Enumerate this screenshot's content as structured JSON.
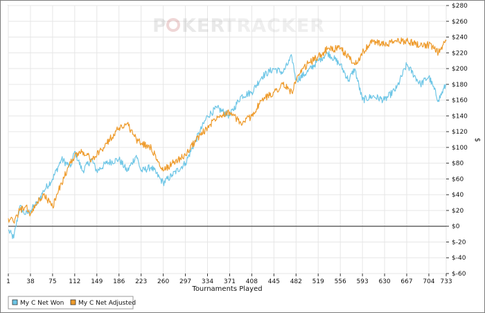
{
  "watermark": {
    "logo_left": "P",
    "logo_right": "KER",
    "logo_suffix": "TRACKER"
  },
  "chart_data": {
    "type": "line",
    "xlabel": "Tournaments Played",
    "ylabel": "$",
    "xlim": [
      1,
      733
    ],
    "ylim": [
      -60,
      280
    ],
    "x_ticks": [
      1,
      38,
      75,
      112,
      149,
      186,
      223,
      260,
      297,
      334,
      371,
      408,
      445,
      482,
      519,
      556,
      593,
      630,
      667,
      704,
      733
    ],
    "y_ticks": [
      "$280",
      "$260",
      "$240",
      "$220",
      "$200",
      "$180",
      "$160",
      "$140",
      "$120",
      "$100",
      "$80",
      "$60",
      "$40",
      "$20",
      "$0",
      "$-20",
      "$-40",
      "$-60"
    ],
    "y_tick_values": [
      280,
      260,
      240,
      220,
      200,
      180,
      160,
      140,
      120,
      100,
      80,
      60,
      40,
      20,
      0,
      -20,
      -40,
      -60
    ],
    "grid": true,
    "legend_position": "bottom-left",
    "series": [
      {
        "name": "My C Net Won",
        "color": "#6ec6e6",
        "x": [
          1,
          10,
          20,
          30,
          38,
          50,
          60,
          75,
          90,
          105,
          112,
          125,
          140,
          149,
          165,
          186,
          200,
          215,
          223,
          240,
          255,
          260,
          275,
          297,
          315,
          334,
          350,
          371,
          390,
          408,
          425,
          445,
          460,
          475,
          482,
          500,
          519,
          535,
          556,
          570,
          580,
          593,
          610,
          630,
          650,
          667,
          690,
          704,
          720,
          733
        ],
        "values": [
          -5,
          -15,
          25,
          15,
          20,
          30,
          45,
          60,
          85,
          75,
          95,
          70,
          85,
          70,
          80,
          85,
          70,
          90,
          70,
          75,
          60,
          55,
          65,
          80,
          110,
          140,
          150,
          140,
          165,
          170,
          190,
          200,
          195,
          215,
          185,
          195,
          210,
          220,
          205,
          185,
          200,
          160,
          165,
          160,
          175,
          205,
          180,
          190,
          160,
          180
        ]
      },
      {
        "name": "My C Net Adjusted",
        "color": "#ee9b2c",
        "x": [
          1,
          10,
          20,
          30,
          38,
          50,
          60,
          75,
          90,
          105,
          112,
          125,
          140,
          149,
          165,
          186,
          200,
          215,
          223,
          240,
          255,
          260,
          275,
          297,
          315,
          334,
          350,
          371,
          390,
          408,
          425,
          445,
          460,
          475,
          482,
          500,
          519,
          535,
          556,
          570,
          580,
          593,
          610,
          630,
          650,
          667,
          690,
          704,
          720,
          733
        ],
        "values": [
          10,
          5,
          20,
          25,
          15,
          30,
          40,
          25,
          55,
          80,
          90,
          95,
          85,
          90,
          105,
          125,
          130,
          110,
          105,
          100,
          75,
          70,
          80,
          90,
          110,
          125,
          140,
          145,
          130,
          140,
          160,
          170,
          180,
          170,
          185,
          205,
          215,
          225,
          225,
          215,
          205,
          220,
          235,
          230,
          235,
          235,
          230,
          230,
          220,
          235
        ]
      }
    ]
  }
}
